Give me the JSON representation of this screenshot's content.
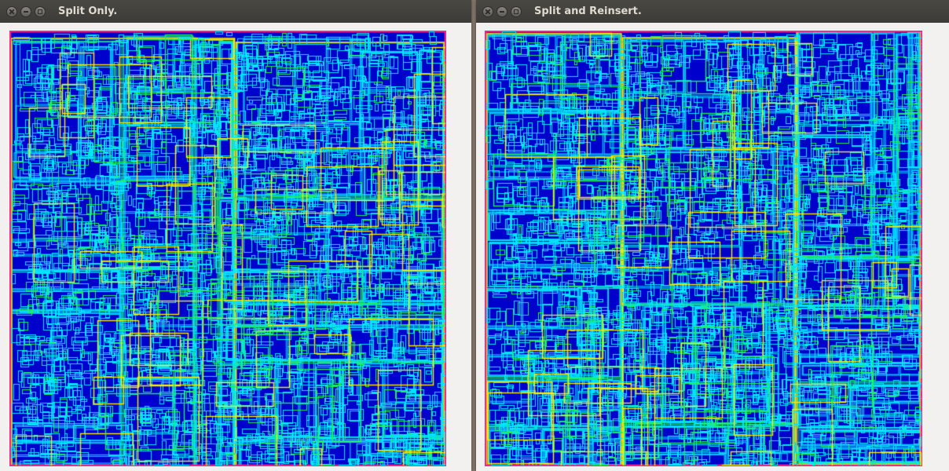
{
  "windows": [
    {
      "title": "Split Only.",
      "controls": [
        "close-icon",
        "minimize-icon",
        "maximize-icon"
      ]
    },
    {
      "title": "Split and Reinsert.",
      "controls": [
        "close-icon",
        "minimize-icon",
        "maximize-icon"
      ]
    }
  ],
  "colors": {
    "background": "#0000cc",
    "cyan": "#00e5ff",
    "green": "#22ee55",
    "yellow": "#ffee00",
    "root_border": "#ff2288",
    "title_text": "#dfdbd2",
    "titlebar": "#3c3b37"
  }
}
